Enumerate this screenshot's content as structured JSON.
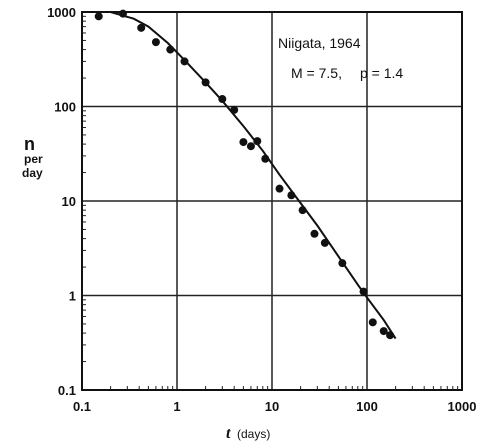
{
  "chart_data": {
    "type": "scatter",
    "x_scale": "log",
    "y_scale": "log",
    "xlim": [
      0.1,
      1000
    ],
    "ylim": [
      0.1,
      1000
    ],
    "grid": true,
    "x_ticks": [
      "0.1",
      "1",
      "10",
      "100",
      "1000"
    ],
    "y_ticks": [
      "0.1",
      "1",
      "10",
      "100",
      "1000"
    ],
    "xlabel_t": "t",
    "xlabel_unit": "(days)",
    "ylabel_n": "n",
    "ylabel_per": "per",
    "ylabel_day": "day",
    "annotation_line1": "Niigata, 1964",
    "annotation_line2_m": "M = 7.5,",
    "annotation_line2_p": "p = 1.4",
    "points": [
      {
        "x": 0.15,
        "y": 900
      },
      {
        "x": 0.27,
        "y": 960
      },
      {
        "x": 0.42,
        "y": 680
      },
      {
        "x": 0.6,
        "y": 480
      },
      {
        "x": 0.85,
        "y": 400
      },
      {
        "x": 1.2,
        "y": 300
      },
      {
        "x": 2.0,
        "y": 180
      },
      {
        "x": 3.0,
        "y": 120
      },
      {
        "x": 4.0,
        "y": 92
      },
      {
        "x": 5.0,
        "y": 42
      },
      {
        "x": 6.0,
        "y": 38
      },
      {
        "x": 7.0,
        "y": 43
      },
      {
        "x": 8.5,
        "y": 28
      },
      {
        "x": 12,
        "y": 13.5
      },
      {
        "x": 16,
        "y": 11.5
      },
      {
        "x": 21,
        "y": 8
      },
      {
        "x": 28,
        "y": 4.5
      },
      {
        "x": 36,
        "y": 3.6
      },
      {
        "x": 55,
        "y": 2.2
      },
      {
        "x": 92,
        "y": 1.1
      },
      {
        "x": 115,
        "y": 0.52
      },
      {
        "x": 150,
        "y": 0.42
      },
      {
        "x": 175,
        "y": 0.38
      }
    ],
    "fit_curve": [
      {
        "x": 0.12,
        "y": 1000
      },
      {
        "x": 0.2,
        "y": 1000
      },
      {
        "x": 0.35,
        "y": 850
      },
      {
        "x": 0.5,
        "y": 700
      },
      {
        "x": 0.8,
        "y": 470
      },
      {
        "x": 1.2,
        "y": 310
      },
      {
        "x": 2,
        "y": 180
      },
      {
        "x": 3,
        "y": 115
      },
      {
        "x": 5,
        "y": 62
      },
      {
        "x": 8,
        "y": 34
      },
      {
        "x": 12,
        "y": 19
      },
      {
        "x": 20,
        "y": 9.5
      },
      {
        "x": 30,
        "y": 5.5
      },
      {
        "x": 50,
        "y": 2.6
      },
      {
        "x": 80,
        "y": 1.3
      },
      {
        "x": 100,
        "y": 0.95
      },
      {
        "x": 150,
        "y": 0.55
      },
      {
        "x": 200,
        "y": 0.35
      }
    ]
  }
}
